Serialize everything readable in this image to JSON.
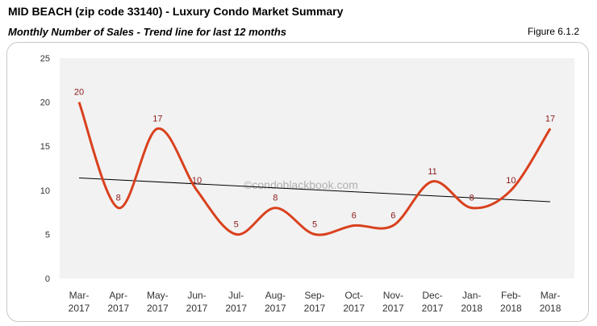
{
  "header": {
    "title": "MID BEACH (zip code 33140) - Luxury Condo Market Summary",
    "subtitle": "Monthly Number of Sales - Trend line for last 12 months",
    "figure": "Figure 6.1.2"
  },
  "chart_data": {
    "type": "line",
    "categories": [
      "Mar-\n2017",
      "Apr-\n2017",
      "May-\n2017",
      "Jun-\n2017",
      "Jul-\n2017",
      "Aug-\n2017",
      "Sep-\n2017",
      "Oct-\n2017",
      "Nov-\n2017",
      "Dec-\n2017",
      "Jan-\n2018",
      "Feb-\n2018",
      "Mar-\n2018"
    ],
    "series": [
      {
        "values": [
          20,
          8,
          17,
          10,
          5,
          8,
          5,
          6,
          6,
          11,
          8,
          10,
          17
        ],
        "color": "#d9411e",
        "smooth": true,
        "data_labels": true
      }
    ],
    "trendline": {
      "type": "linear",
      "start": 11.4,
      "end": 8.7,
      "color": "#000000"
    },
    "ylim": [
      0,
      25
    ],
    "yticks": [
      0,
      5,
      10,
      15,
      20,
      25
    ],
    "grid": false,
    "watermark": "©condoblackbook.com",
    "label_color": "#8b1a1a",
    "plot_background": "#f2f2f2"
  }
}
